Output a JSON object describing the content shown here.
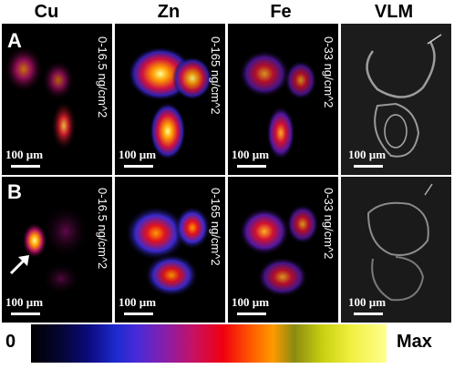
{
  "columns": [
    "Cu",
    "Zn",
    "Fe",
    "VLM"
  ],
  "rows": [
    "A",
    "B"
  ],
  "ranges": {
    "cu": "0-16.5 ng/cm^2",
    "zn": "0-165 ng/cm^2",
    "fe": "0-33 ng/cm^2"
  },
  "scale_bar": "100 µm",
  "colorbar": {
    "min_label": "0",
    "max_label": "Max"
  },
  "colors": {
    "background": "#ffffff",
    "panel": "#000000",
    "text_on_panel": "#ffffff"
  }
}
